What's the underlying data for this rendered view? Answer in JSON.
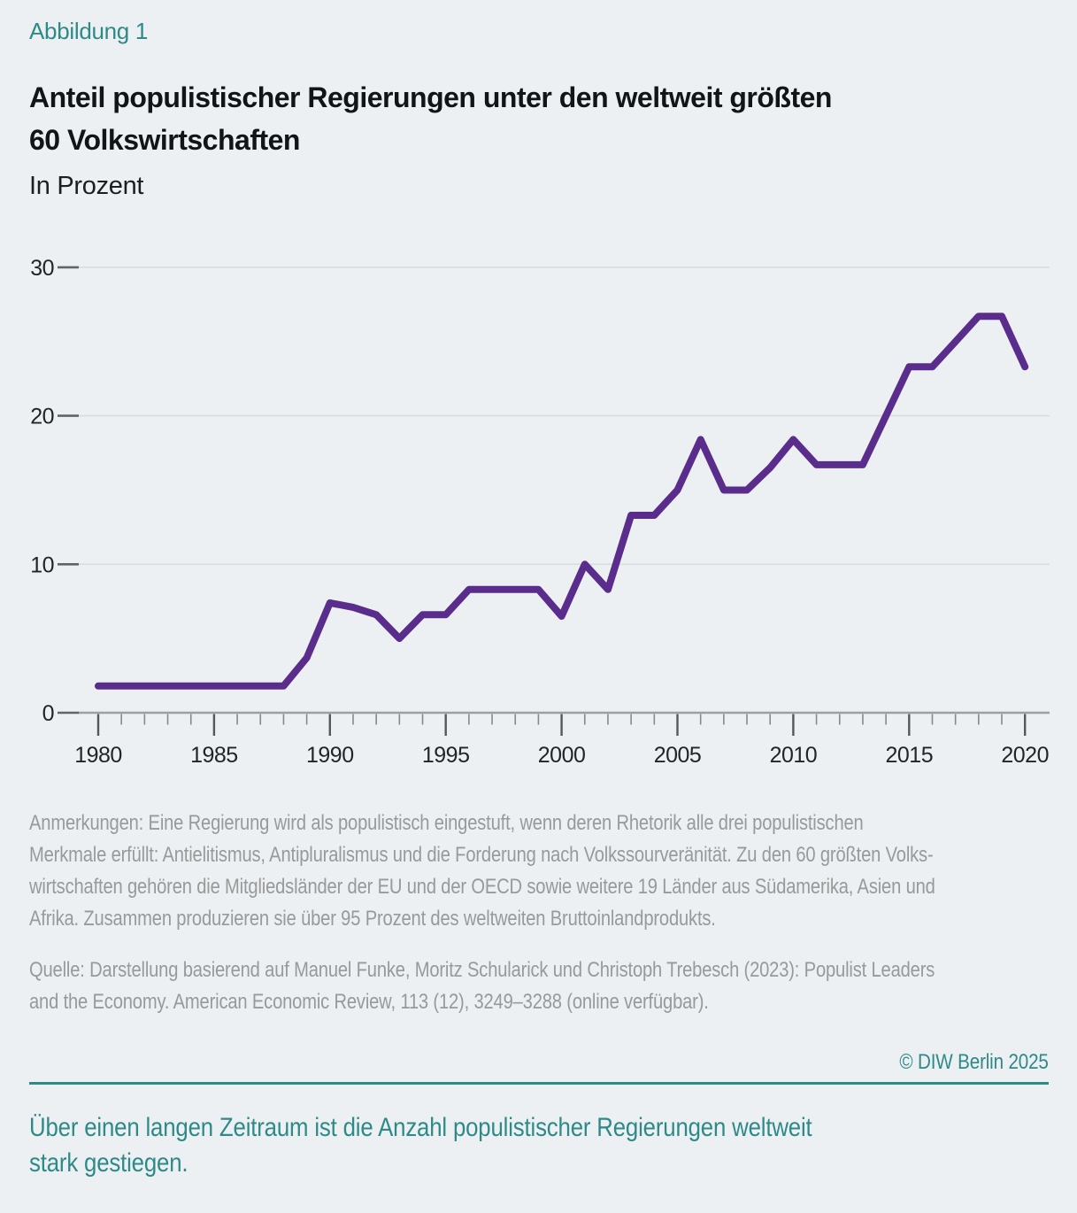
{
  "figure_label": "Abbildung 1",
  "title_lines": [
    "Anteil populistischer Regierungen unter den weltweit größten",
    "60 Volkswirtschaften"
  ],
  "subtitle": "In Prozent",
  "chart_data": {
    "type": "line",
    "title": "Anteil populistischer Regierungen unter den weltweit größten 60 Volkswirtschaften",
    "xlabel": "",
    "ylabel": "Prozent",
    "x": [
      1980,
      1981,
      1982,
      1983,
      1984,
      1985,
      1986,
      1987,
      1988,
      1989,
      1990,
      1991,
      1992,
      1993,
      1994,
      1995,
      1996,
      1997,
      1998,
      1999,
      2000,
      2001,
      2002,
      2003,
      2004,
      2005,
      2006,
      2007,
      2008,
      2009,
      2010,
      2011,
      2012,
      2013,
      2014,
      2015,
      2016,
      2017,
      2018,
      2019,
      2020
    ],
    "values": [
      1.8,
      1.8,
      1.8,
      1.8,
      1.8,
      1.8,
      1.8,
      1.8,
      1.8,
      3.7,
      7.4,
      7.1,
      6.6,
      5.0,
      6.6,
      6.6,
      8.3,
      8.3,
      8.3,
      8.3,
      6.5,
      10.0,
      8.3,
      13.3,
      13.3,
      15.0,
      18.4,
      15.0,
      15.0,
      16.5,
      18.4,
      16.7,
      16.7,
      16.7,
      20.0,
      23.3,
      23.3,
      25.0,
      26.7,
      26.7,
      23.3
    ],
    "ylim": [
      0,
      30
    ],
    "yticks": [
      0,
      10,
      20,
      30
    ],
    "xticks_major": [
      1980,
      1985,
      1990,
      1995,
      2000,
      2005,
      2010,
      2015,
      2020
    ],
    "grid": "horizontal",
    "legend": "none",
    "line_color": "#5a2d8c"
  },
  "notes_lines": [
    "Anmerkungen: Eine Regierung wird als populistisch eingestuft, wenn deren Rhetorik alle drei populistischen",
    "Merkmale erfüllt: Antielitismus, Antipluralismus und die Forderung nach Volkssourveränität. Zu den 60 größten Volks-",
    "wirtschaften gehören die Mitgliedsländer der EU und der OECD sowie weitere 19 Länder aus Südamerika, Asien und",
    "Afrika. Zusammen produzieren sie über 95 Prozent des weltweiten Bruttoinlandprodukts."
  ],
  "source_lines": [
    "Quelle: Darstellung basierend auf Manuel Funke, Moritz Schularick und Christoph Trebesch (2023): Populist Leaders",
    "and the Economy. American Economic Review, 113 (12), 3249–3288 (online verfügbar)."
  ],
  "copyright": "© DIW Berlin 2025",
  "statement_lines": [
    "Über einen langen Zeitraum ist die Anzahl populistischer Regierungen weltweit",
    "stark gestiegen."
  ],
  "colors": {
    "background": "#edf0f2",
    "accent_teal": "#2d8a87",
    "line_purple": "#5a2d8c",
    "text_dark": "#121517",
    "text_gray": "#97999b",
    "gridline": "#d9dcdf",
    "axis_line": "#9ba0a3"
  }
}
